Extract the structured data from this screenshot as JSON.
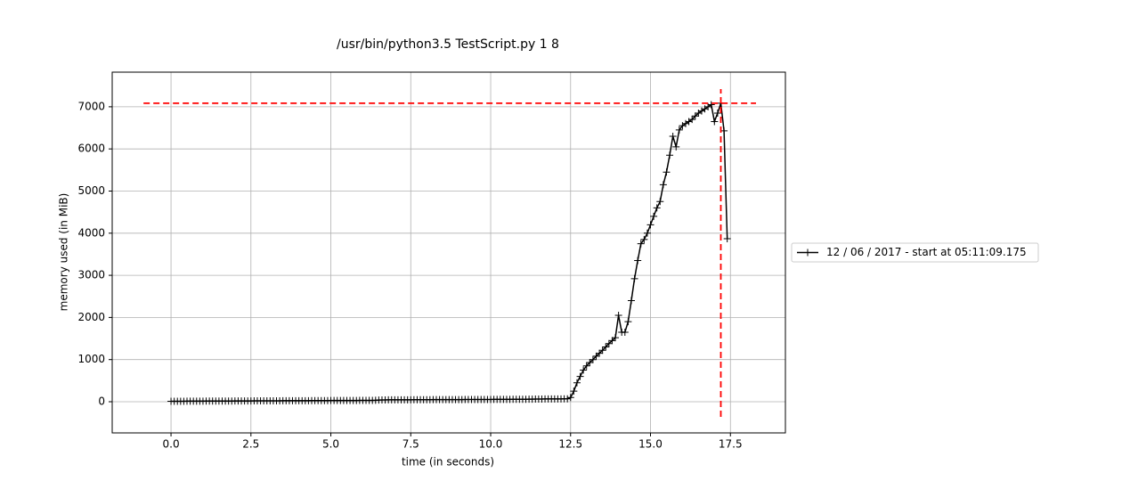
{
  "chart_data": {
    "type": "line",
    "title": "/usr/bin/python3.5 TestScript.py 1 8",
    "xlabel": "time (in seconds)",
    "ylabel": "memory used (in MiB)",
    "x": [
      0.0,
      0.1,
      0.2,
      0.3,
      0.4,
      0.5,
      0.6,
      0.7,
      0.8,
      0.9,
      1.0,
      1.1,
      1.2,
      1.3,
      1.4,
      1.5,
      1.6,
      1.7,
      1.8,
      1.9,
      2.0,
      2.1,
      2.2,
      2.3,
      2.4,
      2.5,
      2.6,
      2.7,
      2.8,
      2.9,
      3.0,
      3.1,
      3.2,
      3.3,
      3.4,
      3.5,
      3.6,
      3.7,
      3.8,
      3.9,
      4.0,
      4.1,
      4.2,
      4.3,
      4.4,
      4.5,
      4.6,
      4.7,
      4.8,
      4.9,
      5.0,
      5.1,
      5.2,
      5.3,
      5.4,
      5.5,
      5.6,
      5.7,
      5.8,
      5.9,
      6.0,
      6.1,
      6.2,
      6.3,
      6.4,
      6.5,
      6.6,
      6.7,
      6.8,
      6.9,
      7.0,
      7.1,
      7.2,
      7.3,
      7.4,
      7.5,
      7.6,
      7.7,
      7.8,
      7.9,
      8.0,
      8.1,
      8.2,
      8.3,
      8.4,
      8.5,
      8.6,
      8.7,
      8.8,
      8.9,
      9.0,
      9.1,
      9.2,
      9.3,
      9.4,
      9.5,
      9.6,
      9.7,
      9.8,
      9.9,
      10.0,
      10.1,
      10.2,
      10.3,
      10.4,
      10.5,
      10.6,
      10.7,
      10.8,
      10.9,
      11.0,
      11.1,
      11.2,
      11.3,
      11.4,
      11.5,
      11.6,
      11.7,
      11.8,
      11.9,
      12.0,
      12.1,
      12.2,
      12.3,
      12.4,
      12.5,
      12.6,
      12.7,
      12.8,
      12.9,
      13.0,
      13.1,
      13.2,
      13.3,
      13.4,
      13.5,
      13.6,
      13.7,
      13.8,
      13.9,
      14.0,
      14.1,
      14.2,
      14.3,
      14.4,
      14.5,
      14.6,
      14.7,
      14.8,
      14.9,
      15.0,
      15.1,
      15.2,
      15.3,
      15.4,
      15.5,
      15.6,
      15.7,
      15.8,
      15.9,
      16.0,
      16.1,
      16.2,
      16.3,
      16.4,
      16.5,
      16.6,
      16.7,
      16.8,
      16.9,
      17.0,
      17.1,
      17.2,
      17.3,
      17.4
    ],
    "series": [
      {
        "name": "12 / 06 / 2017 - start at 05:11:09.175",
        "color": "#000000",
        "marker": "+",
        "values": [
          10,
          10,
          10,
          11,
          11,
          12,
          12,
          13,
          13,
          14,
          14,
          15,
          15,
          15,
          16,
          16,
          16,
          17,
          17,
          17,
          18,
          18,
          18,
          19,
          19,
          19,
          20,
          20,
          20,
          21,
          21,
          21,
          22,
          22,
          22,
          23,
          23,
          23,
          24,
          24,
          24,
          25,
          25,
          25,
          26,
          26,
          26,
          27,
          27,
          27,
          28,
          28,
          28,
          29,
          29,
          29,
          30,
          30,
          30,
          31,
          31,
          31,
          32,
          32,
          35,
          40,
          42,
          43,
          44,
          44,
          45,
          45,
          45,
          46,
          46,
          46,
          47,
          47,
          47,
          48,
          48,
          48,
          49,
          49,
          49,
          50,
          50,
          50,
          50,
          51,
          51,
          51,
          52,
          52,
          52,
          53,
          53,
          53,
          54,
          54,
          54,
          55,
          55,
          55,
          56,
          56,
          56,
          57,
          57,
          57,
          58,
          58,
          60,
          62,
          63,
          64,
          64,
          65,
          65,
          66,
          66,
          67,
          67,
          68,
          68,
          100,
          250,
          450,
          600,
          750,
          850,
          930,
          1000,
          1080,
          1150,
          1220,
          1300,
          1380,
          1450,
          1520,
          2050,
          1650,
          1650,
          1900,
          2400,
          2920,
          3350,
          3750,
          3850,
          4000,
          4200,
          4400,
          4600,
          4750,
          5150,
          5450,
          5850,
          6300,
          6050,
          6450,
          6550,
          6600,
          6650,
          6700,
          6780,
          6850,
          6900,
          6950,
          7000,
          7050,
          6650,
          6850,
          7085,
          6430,
          3870
        ]
      }
    ],
    "hlines": [
      {
        "y": 7085,
        "xmin": -0.86,
        "xmax": 18.3,
        "color": "#ff0000"
      }
    ],
    "vlines": [
      {
        "x": 17.2,
        "ymin": -360,
        "ymax": 7420,
        "color": "#ff0000"
      }
    ],
    "xlim": [
      -1.84,
      19.22
    ],
    "ylim": [
      -740,
      7822
    ],
    "xticks": [
      {
        "value": 0,
        "label": "0.0"
      },
      2.5,
      {
        "value": 5,
        "label": "5.0"
      },
      7.5,
      {
        "value": 10,
        "label": "10.0"
      },
      12.5,
      {
        "value": 15,
        "label": "15.0"
      },
      17.5
    ],
    "yticks": [
      0,
      1000,
      2000,
      3000,
      4000,
      5000,
      6000,
      7000
    ],
    "grid": true,
    "legend": "outside-right"
  }
}
